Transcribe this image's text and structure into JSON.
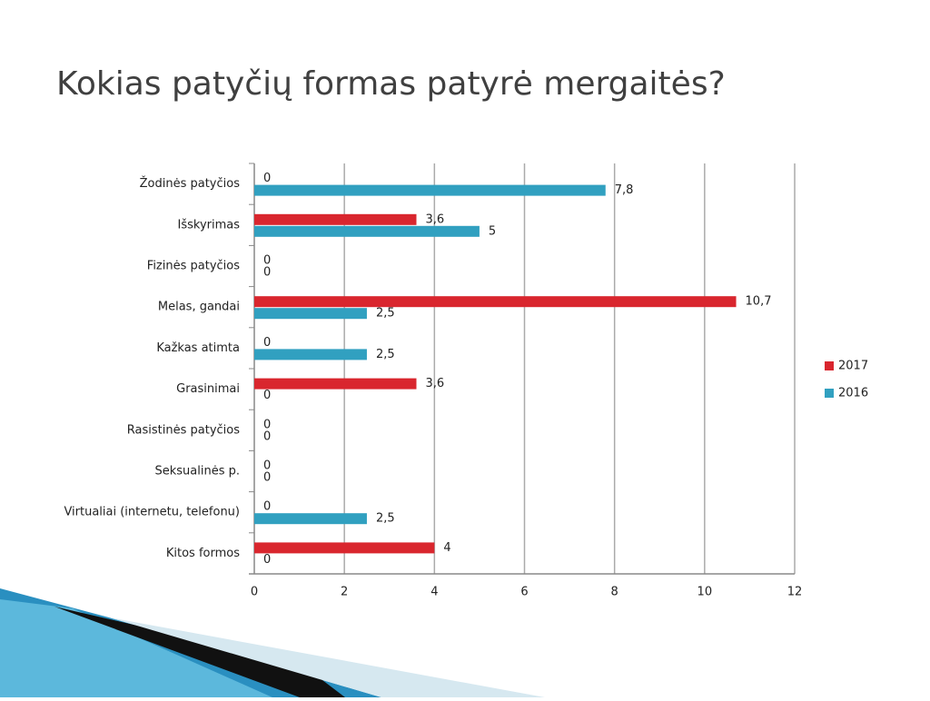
{
  "chart_data": {
    "type": "bar",
    "orientation": "horizontal",
    "title": "Kokias patyčių formas patyrė mergaitės?",
    "categories": [
      "Žodinės patyčios",
      "Išskyrimas",
      "Fizinės patyčios",
      "Melas, gandai",
      "Kažkas atimta",
      "Grasinimai",
      "Rasistinės patyčios",
      "Seksualinės p.",
      "Virtualiai (internetu, telefonu)",
      "Kitos formos"
    ],
    "series": [
      {
        "name": "2017",
        "color": "#d9262e",
        "values": [
          0,
          3.6,
          0,
          10.7,
          0,
          3.6,
          0,
          0,
          0,
          4
        ],
        "value_labels": [
          "0",
          "3,6",
          "0",
          "10,7",
          "0",
          "3,6",
          "0",
          "0",
          "0",
          "4"
        ]
      },
      {
        "name": "2016",
        "color": "#31a0c0",
        "values": [
          7.8,
          5,
          0,
          2.5,
          2.5,
          0,
          0,
          0,
          2.5,
          0
        ],
        "value_labels": [
          "7,8",
          "5",
          "0",
          "2,5",
          "2,5",
          "0",
          "0",
          "0",
          "2,5",
          "0"
        ]
      }
    ],
    "xlim": [
      0,
      12
    ],
    "xticks": [
      0,
      2,
      4,
      6,
      8,
      10,
      12
    ],
    "grid": true,
    "legend": "right"
  }
}
